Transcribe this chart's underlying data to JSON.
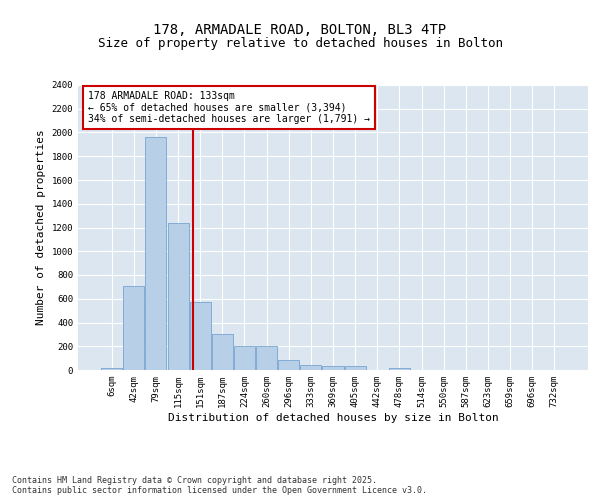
{
  "title_line1": "178, ARMADALE ROAD, BOLTON, BL3 4TP",
  "title_line2": "Size of property relative to detached houses in Bolton",
  "xlabel": "Distribution of detached houses by size in Bolton",
  "ylabel": "Number of detached properties",
  "bar_color": "#b8cfe8",
  "bar_edge_color": "#6699cc",
  "background_color": "#dce6f0",
  "grid_color": "#ffffff",
  "categories": [
    "6sqm",
    "42sqm",
    "79sqm",
    "115sqm",
    "151sqm",
    "187sqm",
    "224sqm",
    "260sqm",
    "296sqm",
    "333sqm",
    "369sqm",
    "405sqm",
    "442sqm",
    "478sqm",
    "514sqm",
    "550sqm",
    "587sqm",
    "623sqm",
    "659sqm",
    "696sqm",
    "732sqm"
  ],
  "values": [
    15,
    710,
    1960,
    1240,
    575,
    305,
    200,
    200,
    85,
    45,
    35,
    35,
    0,
    20,
    0,
    0,
    0,
    0,
    0,
    0,
    0
  ],
  "vline_x_index": 3.68,
  "vline_color": "#cc0000",
  "annotation_text": "178 ARMADALE ROAD: 133sqm\n← 65% of detached houses are smaller (3,394)\n34% of semi-detached houses are larger (1,791) →",
  "annotation_box_color": "#cc0000",
  "ylim": [
    0,
    2400
  ],
  "yticks": [
    0,
    200,
    400,
    600,
    800,
    1000,
    1200,
    1400,
    1600,
    1800,
    2000,
    2200,
    2400
  ],
  "footnote": "Contains HM Land Registry data © Crown copyright and database right 2025.\nContains public sector information licensed under the Open Government Licence v3.0.",
  "title_fontsize": 10,
  "subtitle_fontsize": 9,
  "tick_fontsize": 6.5,
  "label_fontsize": 8,
  "annot_fontsize": 7
}
